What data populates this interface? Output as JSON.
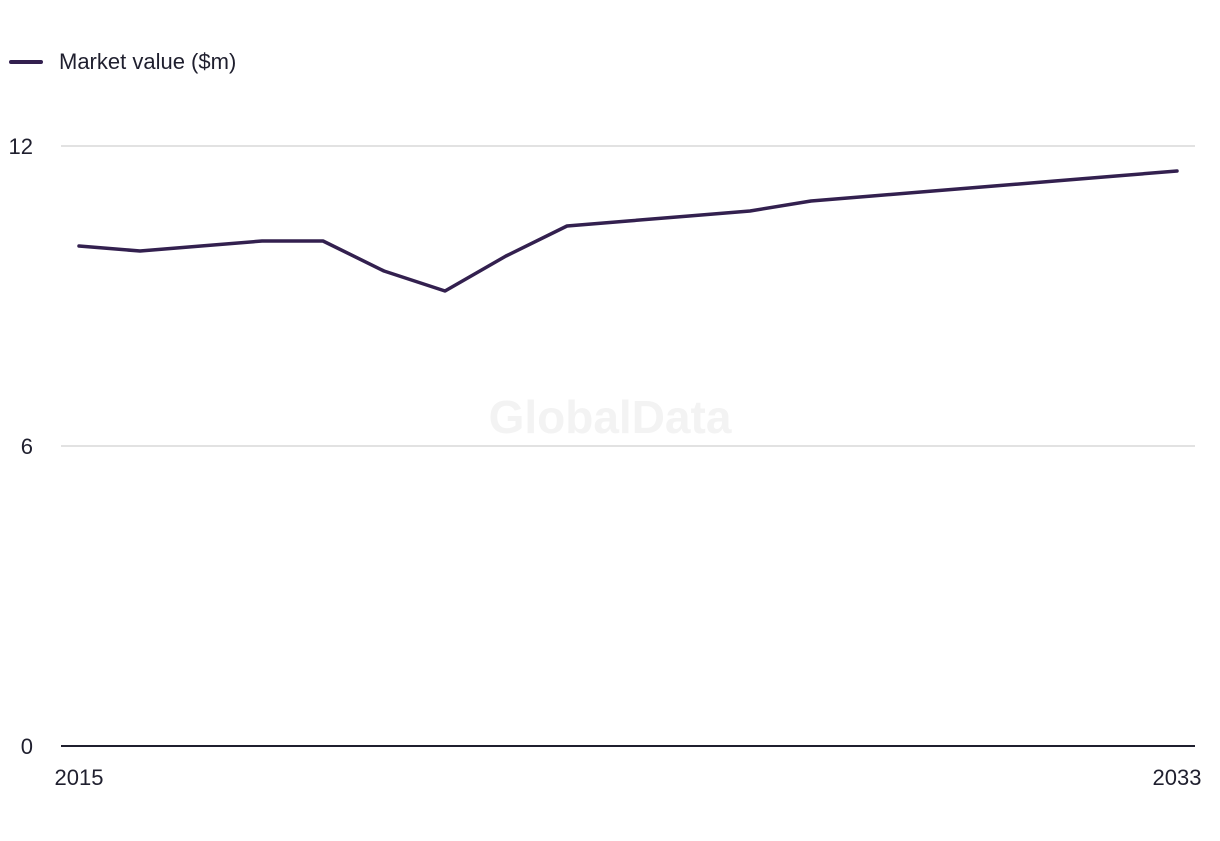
{
  "chart_data": {
    "type": "line",
    "watermark": "GlobalData",
    "series": [
      {
        "name": "Market value ($m)",
        "color": "#33204f",
        "points": [
          {
            "x": 2015,
            "y": 10.0
          },
          {
            "x": 2016,
            "y": 9.9
          },
          {
            "x": 2017,
            "y": 10.0
          },
          {
            "x": 2018,
            "y": 10.1
          },
          {
            "x": 2019,
            "y": 10.1
          },
          {
            "x": 2020,
            "y": 9.5
          },
          {
            "x": 2021,
            "y": 9.1
          },
          {
            "x": 2022,
            "y": 9.8
          },
          {
            "x": 2023,
            "y": 10.4
          },
          {
            "x": 2024,
            "y": 10.5
          },
          {
            "x": 2025,
            "y": 10.6
          },
          {
            "x": 2026,
            "y": 10.7
          },
          {
            "x": 2027,
            "y": 10.9
          },
          {
            "x": 2028,
            "y": 11.0
          },
          {
            "x": 2029,
            "y": 11.1
          },
          {
            "x": 2030,
            "y": 11.2
          },
          {
            "x": 2031,
            "y": 11.3
          },
          {
            "x": 2032,
            "y": 11.4
          },
          {
            "x": 2033,
            "y": 11.5
          }
        ]
      }
    ],
    "x_tick_labels": [
      "2015",
      "2033"
    ],
    "y_ticks": [
      0,
      6,
      12
    ],
    "xlim": [
      2015,
      2033
    ],
    "ylim": [
      0,
      12
    ],
    "grid": true,
    "legend_position": "top-left",
    "colors": {
      "line": "#33204f",
      "grid": "#d9d9d9",
      "axis": "#1f1f2e",
      "watermark": "#f3f3f3"
    }
  }
}
